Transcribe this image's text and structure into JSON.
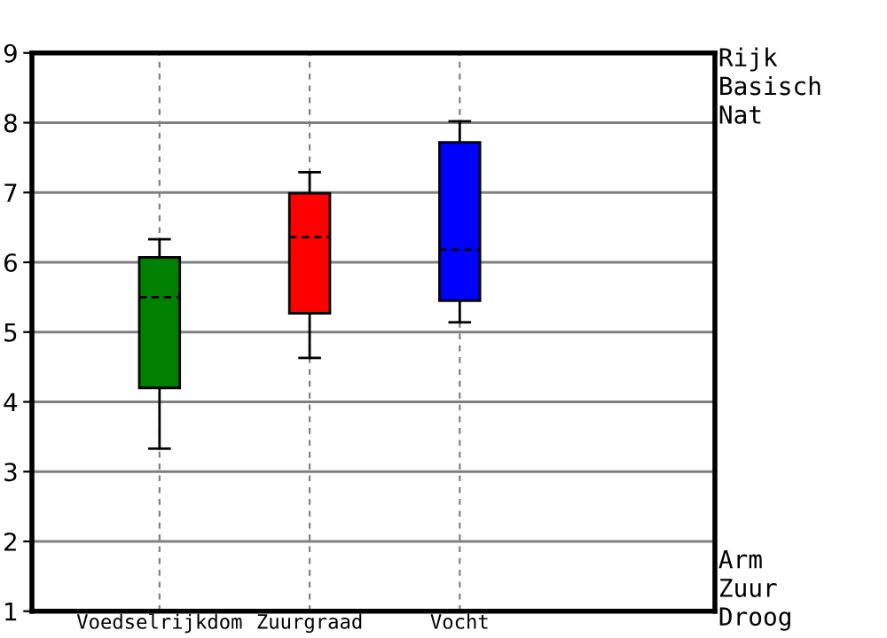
{
  "chart_data": {
    "type": "box",
    "categories": [
      "Voedselrijkdom",
      "Zuurgraad",
      "Vocht"
    ],
    "colors": [
      "#008000",
      "#ff0000",
      "#0000ff"
    ],
    "boxes": [
      {
        "low": 3.33,
        "q1": 4.2,
        "median": 5.5,
        "q3": 6.07,
        "high": 6.33
      },
      {
        "low": 4.63,
        "q1": 5.27,
        "median": 6.36,
        "q3": 6.99,
        "high": 7.29
      },
      {
        "low": 5.14,
        "q1": 5.45,
        "median": 6.18,
        "q3": 7.72,
        "high": 8.02
      }
    ],
    "ylim": [
      1,
      9
    ],
    "yticks": [
      1,
      2,
      3,
      4,
      5,
      6,
      7,
      8,
      9
    ],
    "grid": true,
    "annotations": [
      "Rijk\nBasisch\nNat",
      "Arm\nZuur\nDroog"
    ]
  }
}
